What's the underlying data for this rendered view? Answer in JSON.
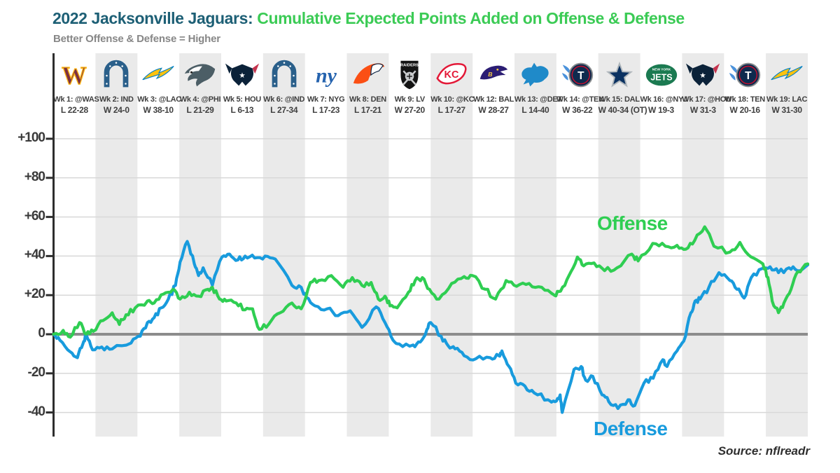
{
  "header": {
    "title_team": "2022 Jacksonville Jaguars:",
    "title_metric": "Cumulative Expected Points Added on Offense & Defense",
    "subtitle": "Better Offense & Defense = Higher"
  },
  "footer": {
    "source": "Source: nflreadr"
  },
  "series_labels": {
    "offense": "Offense",
    "defense": "Defense"
  },
  "colors": {
    "title_team": "#1D5F75",
    "title_metric": "#3BCB55",
    "subtitle": "#878787",
    "offense_line": "#2FCE52",
    "defense_line": "#189BDD",
    "band": "#EAEAEA",
    "gridline": "#D8D8D8",
    "zero_line": "#8C8C8C",
    "axis": "#2E2E2E",
    "tick_label": "#3A3A3A",
    "week_label": "#3F3F3F",
    "source_text": "#2F2F2F"
  },
  "teams": {
    "WAS": {
      "icon": "commanders-w-icon",
      "primary": "#7C3041",
      "accent": "#FFB612"
    },
    "IND": {
      "icon": "colts-horseshoe-icon",
      "primary": "#2A5F8A",
      "accent": "#FFFFFF"
    },
    "LAC": {
      "icon": "chargers-bolt-icon",
      "primary": "#FFC20E",
      "accent": "#0080C6"
    },
    "PHI": {
      "icon": "eagles-head-icon",
      "primary": "#4C5E66",
      "accent": "#FFFFFF"
    },
    "HOU": {
      "icon": "texans-bull-icon",
      "primary": "#0B2239",
      "accent": "#C4344E"
    },
    "NYG": {
      "icon": "giants-ny-icon",
      "primary": "#2563AE",
      "accent": "#FFFFFF"
    },
    "DEN": {
      "icon": "broncos-horse-icon",
      "primary": "#FB4F14",
      "accent": "#0A2343"
    },
    "LV": {
      "icon": "raiders-shield-icon",
      "primary": "#141414",
      "accent": "#C8CACC"
    },
    "KC": {
      "icon": "chiefs-arrowhead-icon",
      "primary": "#E31837",
      "accent": "#FFFFFF"
    },
    "BAL": {
      "icon": "ravens-head-icon",
      "primary": "#2B1D73",
      "accent": "#F2C944"
    },
    "DET": {
      "icon": "lions-lion-icon",
      "primary": "#1F8AC9",
      "accent": "#FFFFFF"
    },
    "TEN": {
      "icon": "titans-circle-icon",
      "primary": "#0E2A4E",
      "accent": "#4B92DB",
      "tertiary": "#C8102E"
    },
    "DAL": {
      "icon": "cowboys-star-icon",
      "primary": "#0A3161",
      "accent": "#B0B7BC"
    },
    "NYJ": {
      "icon": "jets-oval-icon",
      "primary": "#1B7A51",
      "accent": "#FFFFFF"
    }
  },
  "weeks": [
    {
      "label": "Wk 1: @WAS",
      "result": "L 22-28",
      "team": "WAS"
    },
    {
      "label": "Wk 2: IND",
      "result": "W 24-0",
      "team": "IND"
    },
    {
      "label": "Wk 3: @LAC",
      "result": "W 38-10",
      "team": "LAC"
    },
    {
      "label": "Wk 4: @PHI",
      "result": "L 21-29",
      "team": "PHI"
    },
    {
      "label": "Wk 5: HOU",
      "result": "L 6-13",
      "team": "HOU"
    },
    {
      "label": "Wk 6: @IND",
      "result": "L 27-34",
      "team": "IND"
    },
    {
      "label": "Wk 7: NYG",
      "result": "L 17-23",
      "team": "NYG"
    },
    {
      "label": "Wk 8: DEN",
      "result": "L 17-21",
      "team": "DEN"
    },
    {
      "label": "Wk 9: LV",
      "result": "W 27-20",
      "team": "LV"
    },
    {
      "label": "Wk 10: @KC",
      "result": "L 17-27",
      "team": "KC"
    },
    {
      "label": "Wk 12: BAL",
      "result": "W 28-27",
      "team": "BAL"
    },
    {
      "label": "Wk 13: @DET",
      "result": "L 14-40",
      "team": "DET"
    },
    {
      "label": "Wk 14: @TEN",
      "result": "W 36-22",
      "team": "TEN"
    },
    {
      "label": "Wk 15: DAL",
      "result": "W 40-34 (OT)",
      "team": "DAL"
    },
    {
      "label": "Wk 16: @NYJ",
      "result": "W 19-3",
      "team": "NYJ"
    },
    {
      "label": "Wk 17: @HOU",
      "result": "W 31-3",
      "team": "HOU"
    },
    {
      "label": "Wk 18: TEN",
      "result": "W 20-16",
      "team": "TEN"
    },
    {
      "label": "Wk 19: LAC",
      "result": "W 31-30",
      "team": "LAC"
    }
  ],
  "chart_data": {
    "type": "line",
    "title": "2022 Jacksonville Jaguars: Cumulative Expected Points Added on Offense & Defense",
    "x_unit": "season progress in games (18 games, Week 11 bye)",
    "xlim": [
      0,
      18
    ],
    "ylim": [
      -55,
      107
    ],
    "yticks": [
      100,
      80,
      60,
      40,
      20,
      0,
      -20,
      -40
    ],
    "ytick_labels": [
      "+100",
      "+80",
      "+60",
      "+40",
      "+20",
      "0",
      "-20",
      "-40"
    ],
    "grid": true,
    "series": [
      {
        "name": "Offense",
        "color": "#2FCE52",
        "points": [
          [
            0,
            0
          ],
          [
            0.23,
            2
          ],
          [
            0.4,
            -1.5
          ],
          [
            0.62,
            6
          ],
          [
            0.78,
            0
          ],
          [
            0.95,
            1.5
          ],
          [
            1.18,
            7
          ],
          [
            1.4,
            11
          ],
          [
            1.57,
            5
          ],
          [
            1.73,
            10
          ],
          [
            1.95,
            13.5
          ],
          [
            2.24,
            17
          ],
          [
            2.4,
            16
          ],
          [
            2.62,
            20.5
          ],
          [
            2.85,
            23
          ],
          [
            3.02,
            18
          ],
          [
            3.24,
            21.5
          ],
          [
            3.46,
            19.5
          ],
          [
            3.69,
            23
          ],
          [
            3.79,
            24
          ],
          [
            3.96,
            18
          ],
          [
            4.12,
            17
          ],
          [
            4.36,
            16
          ],
          [
            4.57,
            12.5
          ],
          [
            4.75,
            13
          ],
          [
            4.91,
            2.5
          ],
          [
            5.13,
            5
          ],
          [
            5.41,
            11
          ],
          [
            5.69,
            16
          ],
          [
            5.91,
            13
          ],
          [
            6.13,
            26.5
          ],
          [
            6.33,
            27.5
          ],
          [
            6.63,
            30
          ],
          [
            6.91,
            24
          ],
          [
            7.13,
            29
          ],
          [
            7.36,
            25
          ],
          [
            7.58,
            26.5
          ],
          [
            7.75,
            18
          ],
          [
            7.91,
            19.5
          ],
          [
            8.03,
            14.5
          ],
          [
            8.2,
            13.5
          ],
          [
            8.47,
            21.5
          ],
          [
            8.63,
            27.5
          ],
          [
            8.8,
            29
          ],
          [
            8.97,
            23
          ],
          [
            9.2,
            18
          ],
          [
            9.5,
            26
          ],
          [
            9.8,
            29.5
          ],
          [
            10.0,
            30
          ],
          [
            10.3,
            23
          ],
          [
            10.55,
            18
          ],
          [
            10.8,
            27.5
          ],
          [
            11.05,
            24.5
          ],
          [
            11.35,
            26
          ],
          [
            11.65,
            24
          ],
          [
            11.95,
            20
          ],
          [
            12.1,
            22
          ],
          [
            12.3,
            30
          ],
          [
            12.5,
            39.5
          ],
          [
            12.65,
            35
          ],
          [
            12.9,
            36.5
          ],
          [
            13.15,
            32.5
          ],
          [
            13.45,
            34
          ],
          [
            13.8,
            41
          ],
          [
            13.95,
            37.5
          ],
          [
            14.3,
            46.5
          ],
          [
            14.6,
            45
          ],
          [
            14.88,
            45.5
          ],
          [
            15.09,
            43.5
          ],
          [
            15.3,
            48
          ],
          [
            15.54,
            55
          ],
          [
            15.76,
            45
          ],
          [
            16.14,
            42
          ],
          [
            16.38,
            47
          ],
          [
            16.65,
            39.5
          ],
          [
            16.93,
            36
          ],
          [
            17.05,
            29
          ],
          [
            17.15,
            17
          ],
          [
            17.3,
            11
          ],
          [
            17.43,
            16
          ],
          [
            17.6,
            23
          ],
          [
            17.76,
            32
          ],
          [
            18,
            36
          ]
        ]
      },
      {
        "name": "Defense",
        "color": "#189BDD",
        "points": [
          [
            0,
            0
          ],
          [
            0.15,
            -3
          ],
          [
            0.4,
            -9
          ],
          [
            0.57,
            -12
          ],
          [
            0.7,
            -5
          ],
          [
            0.78,
            0
          ],
          [
            0.93,
            -8
          ],
          [
            1.15,
            -6.5
          ],
          [
            1.4,
            -7.5
          ],
          [
            1.85,
            -4.5
          ],
          [
            2.07,
            -1
          ],
          [
            2.24,
            6
          ],
          [
            2.4,
            8.5
          ],
          [
            2.57,
            13.5
          ],
          [
            2.74,
            18
          ],
          [
            2.91,
            25
          ],
          [
            3.02,
            37
          ],
          [
            3.19,
            47.5
          ],
          [
            3.36,
            36
          ],
          [
            3.46,
            30
          ],
          [
            3.57,
            34
          ],
          [
            3.79,
            25
          ],
          [
            4.02,
            39.5
          ],
          [
            4.2,
            41
          ],
          [
            4.4,
            38
          ],
          [
            4.57,
            40
          ],
          [
            4.8,
            39
          ],
          [
            5.05,
            40
          ],
          [
            5.29,
            38.5
          ],
          [
            5.69,
            25
          ],
          [
            5.91,
            24
          ],
          [
            6.03,
            19
          ],
          [
            6.24,
            14.5
          ],
          [
            6.53,
            13
          ],
          [
            6.79,
            9.5
          ],
          [
            7.08,
            12
          ],
          [
            7.36,
            3.5
          ],
          [
            7.7,
            14
          ],
          [
            7.91,
            6
          ],
          [
            8.1,
            -3
          ],
          [
            8.25,
            -5
          ],
          [
            8.58,
            -5.5
          ],
          [
            8.75,
            -4
          ],
          [
            8.91,
            2.5
          ],
          [
            9.0,
            6
          ],
          [
            9.25,
            -1
          ],
          [
            9.42,
            -6
          ],
          [
            9.58,
            -7.5
          ],
          [
            9.8,
            -11
          ],
          [
            10.08,
            -12.5
          ],
          [
            10.42,
            -12
          ],
          [
            10.63,
            -11
          ],
          [
            10.7,
            -8.5
          ],
          [
            10.87,
            -16.5
          ],
          [
            11.03,
            -25
          ],
          [
            11.25,
            -26.5
          ],
          [
            11.47,
            -30
          ],
          [
            11.8,
            -33.5
          ],
          [
            11.97,
            -34.5
          ],
          [
            12.09,
            -31
          ],
          [
            12.14,
            -40
          ],
          [
            12.42,
            -18
          ],
          [
            12.59,
            -16.5
          ],
          [
            12.7,
            -23.5
          ],
          [
            12.87,
            -21.5
          ],
          [
            13.09,
            -31
          ],
          [
            13.25,
            -34.5
          ],
          [
            13.47,
            -38
          ],
          [
            13.71,
            -33.5
          ],
          [
            13.87,
            -36.5
          ],
          [
            14.09,
            -25
          ],
          [
            14.31,
            -22.5
          ],
          [
            14.54,
            -13
          ],
          [
            14.64,
            -16.5
          ],
          [
            14.88,
            -8.5
          ],
          [
            15.04,
            -3.5
          ],
          [
            15.21,
            11
          ],
          [
            15.31,
            17
          ],
          [
            15.43,
            18
          ],
          [
            15.64,
            24
          ],
          [
            15.88,
            31.5
          ],
          [
            16.14,
            27.5
          ],
          [
            16.31,
            23
          ],
          [
            16.48,
            18.5
          ],
          [
            16.65,
            29
          ],
          [
            16.9,
            33.5
          ],
          [
            17.1,
            34.5
          ],
          [
            17.3,
            31.5
          ],
          [
            17.55,
            34
          ],
          [
            17.75,
            32.5
          ],
          [
            18,
            35.5
          ]
        ]
      }
    ],
    "annotations": [
      "Offense",
      "Defense"
    ]
  }
}
